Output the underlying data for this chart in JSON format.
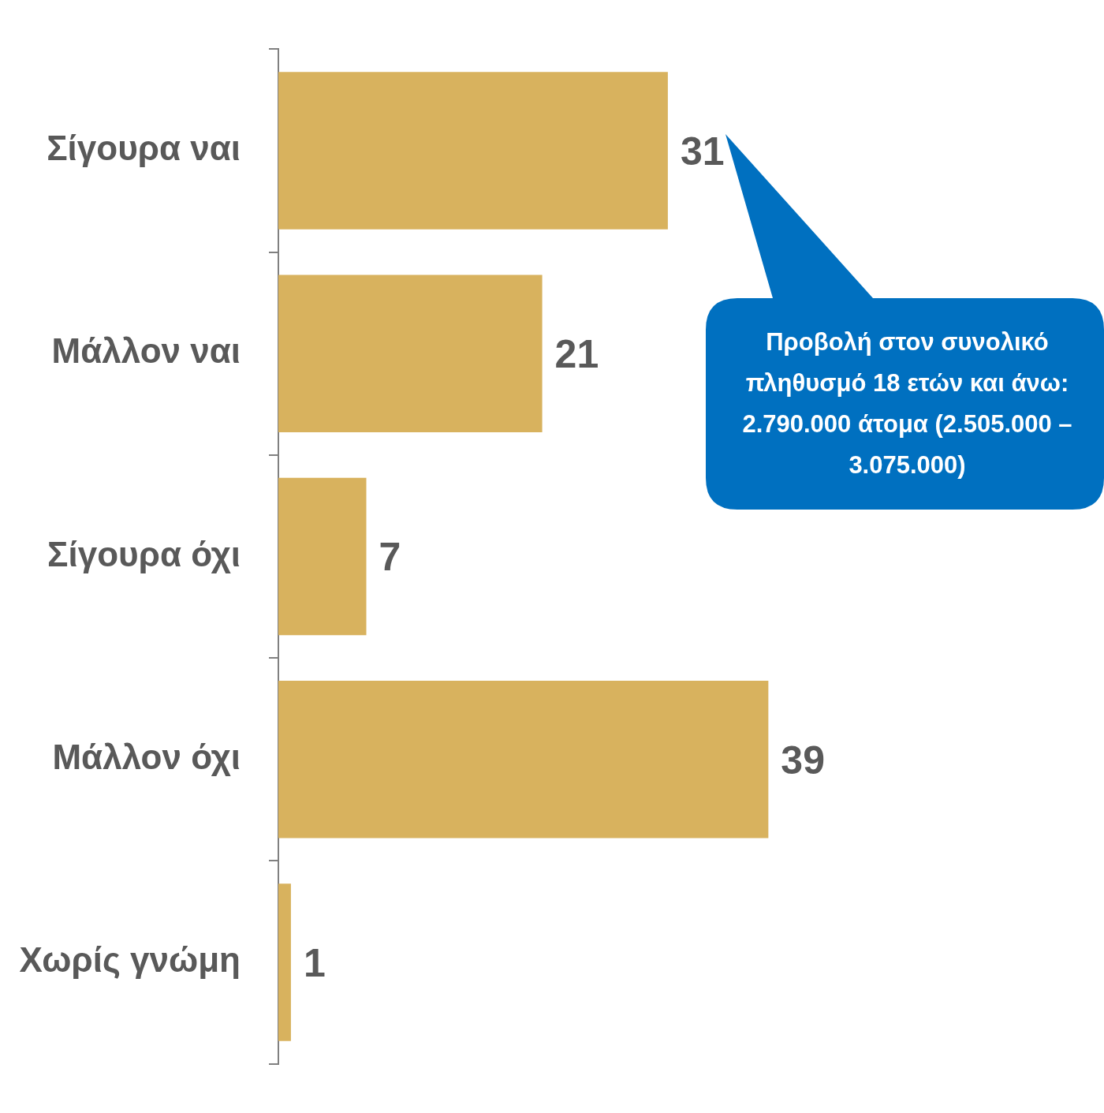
{
  "chart_data": {
    "type": "bar",
    "orientation": "horizontal",
    "categories": [
      "Σίγουρα ναι",
      "Μάλλον ναι",
      "Σίγουρα όχι",
      "Μάλλον όχι",
      "Χωρίς γνώμη"
    ],
    "values": [
      31,
      21,
      7,
      39,
      1
    ],
    "color": "#d8b25e",
    "data_labels": true,
    "legend": false,
    "annotations": [
      "Προβολή στον συνολικό πληθυσμό 18 ετών και άνω: 2.790.000 άτομα (2.505.000 – 3.075.000)"
    ]
  }
}
